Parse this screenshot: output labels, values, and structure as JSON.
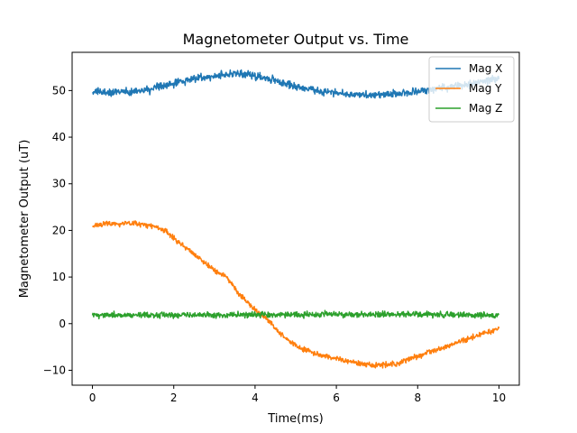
{
  "chart_data": {
    "type": "line",
    "title": "Magnetometer Output vs. Time",
    "xlabel": "Time(ms)",
    "ylabel": "Magnetometer Output (uT)",
    "xlim": [
      -0.5,
      10.5
    ],
    "ylim": [
      -13.2,
      58.2
    ],
    "xticks": [
      0,
      2,
      4,
      6,
      8,
      10
    ],
    "yticks": [
      -10,
      0,
      10,
      20,
      30,
      40,
      50
    ],
    "grid": false,
    "legend": "top-right",
    "sample_count": 1001,
    "series": [
      {
        "name": "Mag X",
        "color": "#1f77b4",
        "noise": 0.8,
        "points": [
          [
            0,
            49.6
          ],
          [
            1,
            49.8
          ],
          [
            1.5,
            50.3
          ],
          [
            2,
            51.6
          ],
          [
            2.5,
            52.6
          ],
          [
            3,
            53.1
          ],
          [
            3.5,
            53.7
          ],
          [
            4,
            53.2
          ],
          [
            4.5,
            52.1
          ],
          [
            5,
            50.9
          ],
          [
            5.5,
            50.0
          ],
          [
            6,
            49.5
          ],
          [
            6.5,
            49.1
          ],
          [
            7,
            49.0
          ],
          [
            7.5,
            49.3
          ],
          [
            8,
            49.8
          ],
          [
            8.5,
            50.4
          ],
          [
            9,
            51.0
          ],
          [
            9.5,
            51.8
          ],
          [
            10,
            52.5
          ]
        ]
      },
      {
        "name": "Mag Y",
        "color": "#ff7f0e",
        "noise": 0.55,
        "points": [
          [
            0,
            21.0
          ],
          [
            0.5,
            21.5
          ],
          [
            1,
            21.5
          ],
          [
            1.5,
            21.0
          ],
          [
            1.8,
            20.0
          ],
          [
            2,
            18.2
          ],
          [
            2.5,
            15.0
          ],
          [
            3,
            11.5
          ],
          [
            3.3,
            10.0
          ],
          [
            3.6,
            6.5
          ],
          [
            4,
            3.0
          ],
          [
            4.3,
            1.0
          ],
          [
            4.6,
            -2.0
          ],
          [
            5,
            -4.8
          ],
          [
            5.5,
            -6.5
          ],
          [
            6,
            -7.5
          ],
          [
            6.5,
            -8.5
          ],
          [
            7,
            -9.0
          ],
          [
            7.5,
            -8.5
          ],
          [
            8,
            -7.0
          ],
          [
            8.5,
            -5.5
          ],
          [
            9,
            -4.0
          ],
          [
            9.5,
            -2.5
          ],
          [
            10,
            -1.2
          ]
        ]
      },
      {
        "name": "Mag Z",
        "color": "#2ca02c",
        "noise": 0.6,
        "points": [
          [
            0,
            1.8
          ],
          [
            2,
            1.8
          ],
          [
            4,
            1.9
          ],
          [
            6,
            2.0
          ],
          [
            8,
            2.0
          ],
          [
            10,
            1.8
          ]
        ]
      }
    ]
  }
}
